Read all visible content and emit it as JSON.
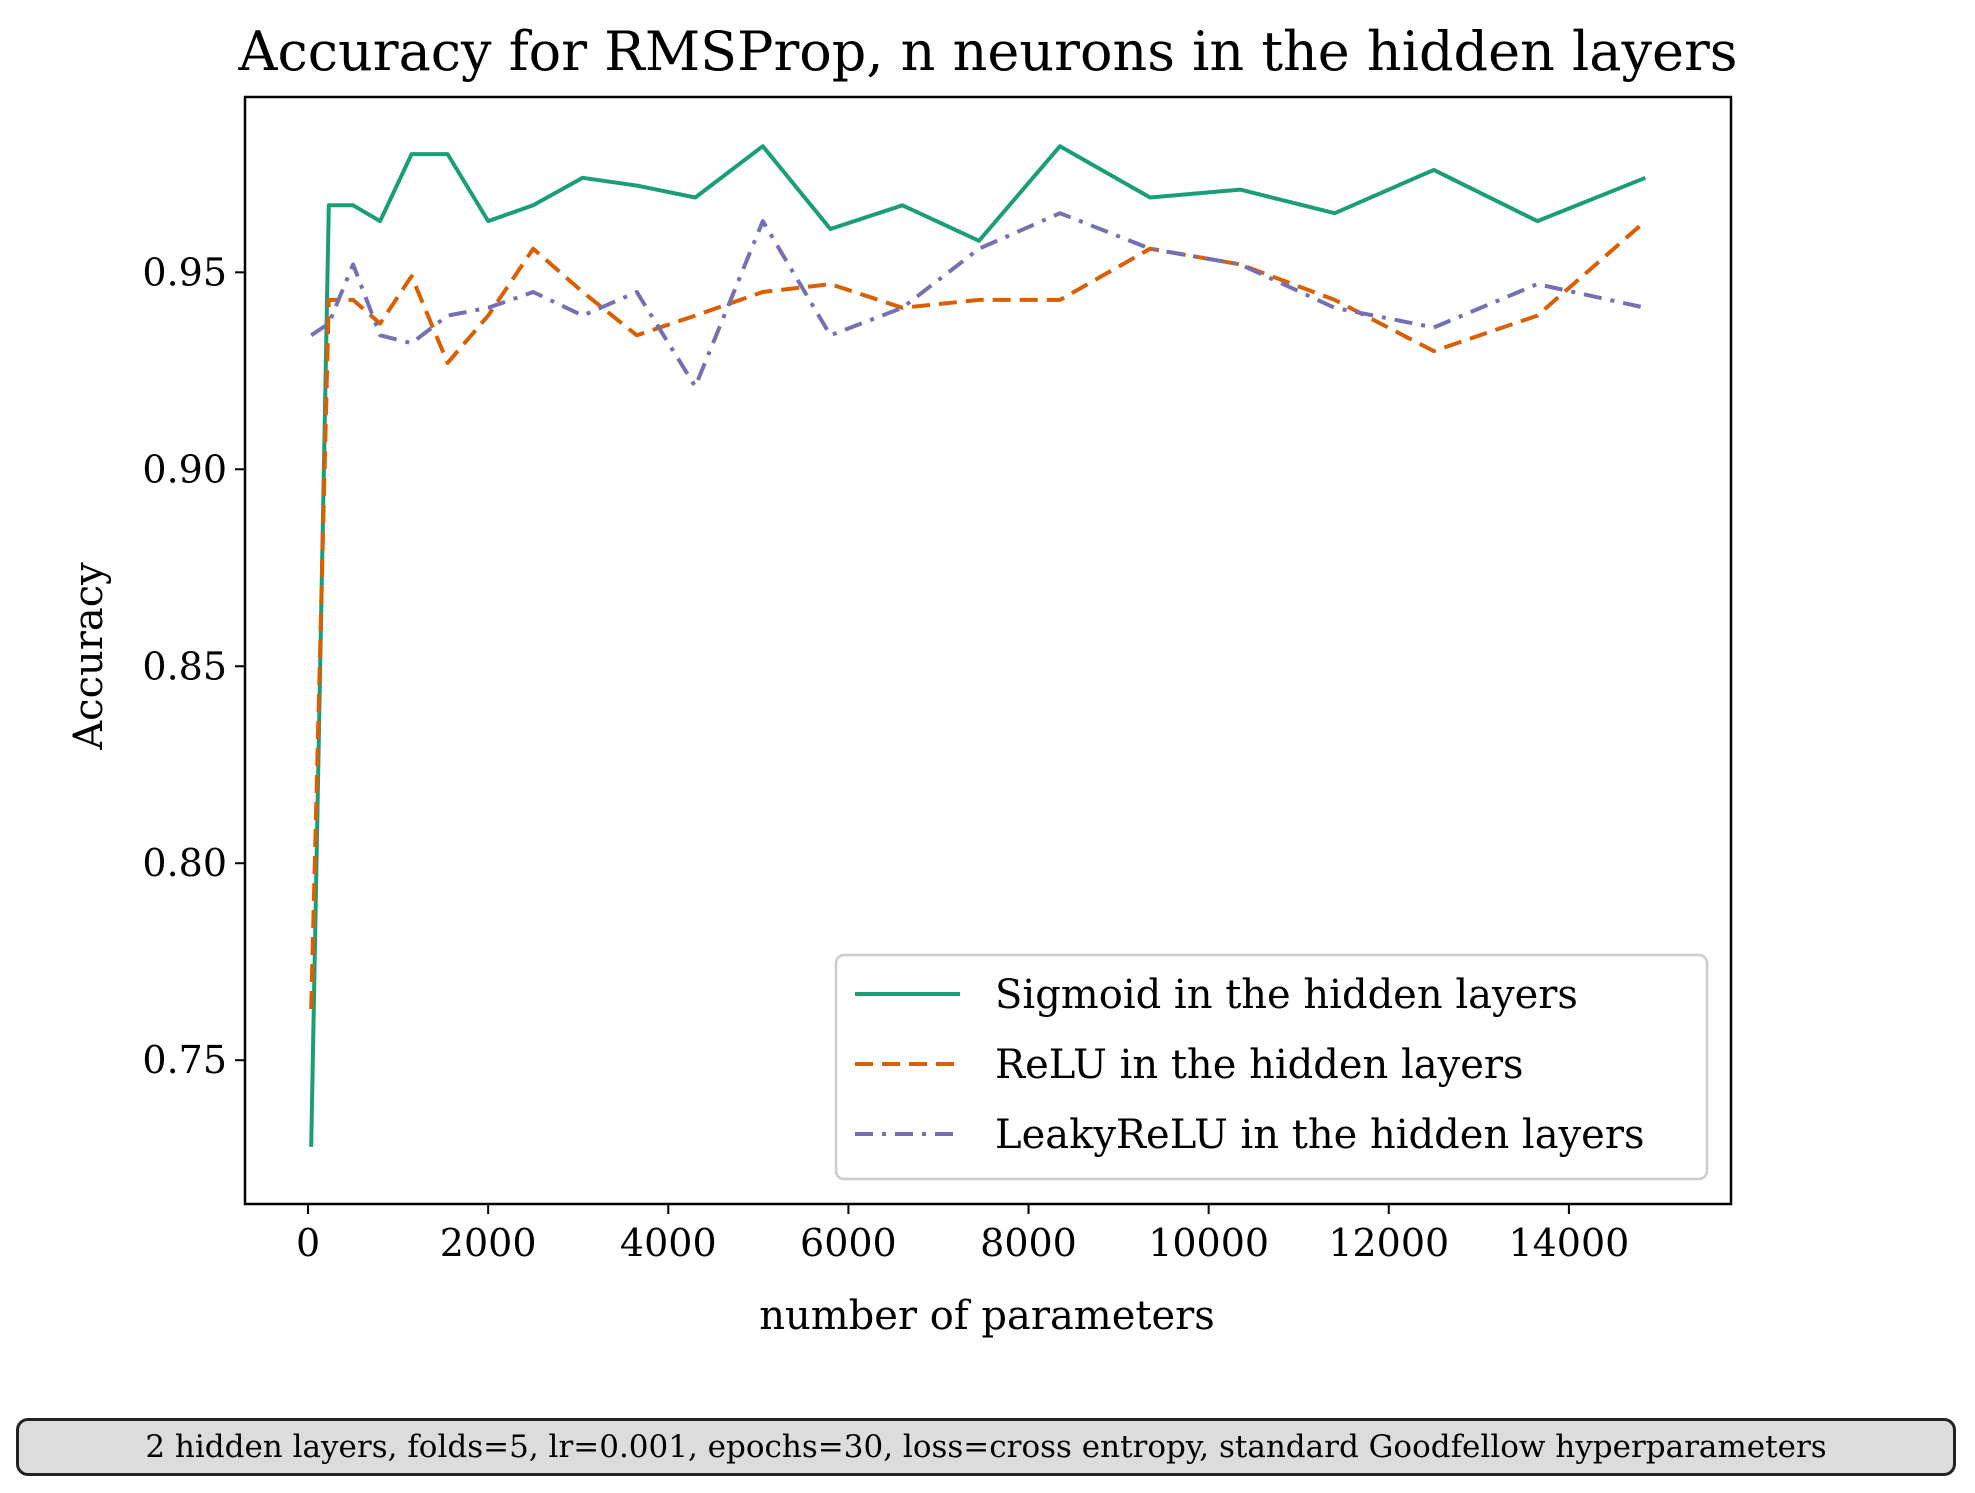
{
  "chart_data": {
    "type": "line",
    "title": "Accuracy for RMSProp, n neurons in the hidden layers",
    "xlabel": "number of parameters",
    "ylabel": "Accuracy",
    "xlim": [
      -700,
      15800
    ],
    "ylim": [
      0.7135,
      0.9945
    ],
    "xticks": [
      0,
      2000,
      4000,
      6000,
      8000,
      10000,
      12000,
      14000
    ],
    "xtick_labels": [
      "0",
      "2000",
      "4000",
      "6000",
      "8000",
      "10000",
      "12000",
      "14000"
    ],
    "yticks": [
      0.75,
      0.8,
      0.85,
      0.9,
      0.95
    ],
    "ytick_labels": [
      "0.75",
      "0.80",
      "0.85",
      "0.90",
      "0.95"
    ],
    "grid": false,
    "legend_position": "lower-right",
    "series": [
      {
        "name": "Sigmoid in the hidden layers",
        "color": "#1b9e77",
        "style": "solid",
        "x": [
          35,
          230,
          500,
          800,
          1150,
          1550,
          2000,
          2500,
          3050,
          3650,
          4300,
          5050,
          5800,
          6600,
          7450,
          8350,
          9350,
          10350,
          11400,
          12500,
          13650,
          14850
        ],
        "y": [
          0.728,
          0.967,
          0.967,
          0.963,
          0.98,
          0.98,
          0.963,
          0.967,
          0.974,
          0.972,
          0.969,
          0.982,
          0.961,
          0.967,
          0.958,
          0.982,
          0.969,
          0.971,
          0.965,
          0.976,
          0.963,
          0.974
        ]
      },
      {
        "name": "ReLU in the hidden layers",
        "color": "#d95f02",
        "style": "dashed",
        "x": [
          35,
          230,
          500,
          800,
          1150,
          1550,
          2000,
          2500,
          3050,
          3650,
          4300,
          5050,
          5800,
          6600,
          7450,
          8350,
          9350,
          10350,
          11400,
          12500,
          13650,
          14850
        ],
        "y": [
          0.763,
          0.943,
          0.943,
          0.937,
          0.949,
          0.927,
          0.939,
          0.956,
          0.945,
          0.934,
          0.939,
          0.945,
          0.947,
          0.941,
          0.943,
          0.943,
          0.956,
          0.952,
          0.943,
          0.93,
          0.939,
          0.963
        ]
      },
      {
        "name": "LeakyReLU in the hidden layers",
        "color": "#7570b3",
        "style": "dashdot",
        "x": [
          35,
          230,
          500,
          800,
          1150,
          1550,
          2000,
          2500,
          3050,
          3650,
          4300,
          5050,
          5800,
          6600,
          7450,
          8350,
          9350,
          10350,
          11400,
          12500,
          13650,
          14850
        ],
        "y": [
          0.934,
          0.937,
          0.952,
          0.934,
          0.932,
          0.939,
          0.941,
          0.945,
          0.939,
          0.945,
          0.921,
          0.963,
          0.934,
          0.941,
          0.956,
          0.965,
          0.956,
          0.952,
          0.941,
          0.936,
          0.947,
          0.941
        ]
      }
    ]
  },
  "footnote": "2 hidden layers, folds=5, lr=0.001, epochs=30, loss=cross entropy, standard Goodfellow hyperparameters"
}
